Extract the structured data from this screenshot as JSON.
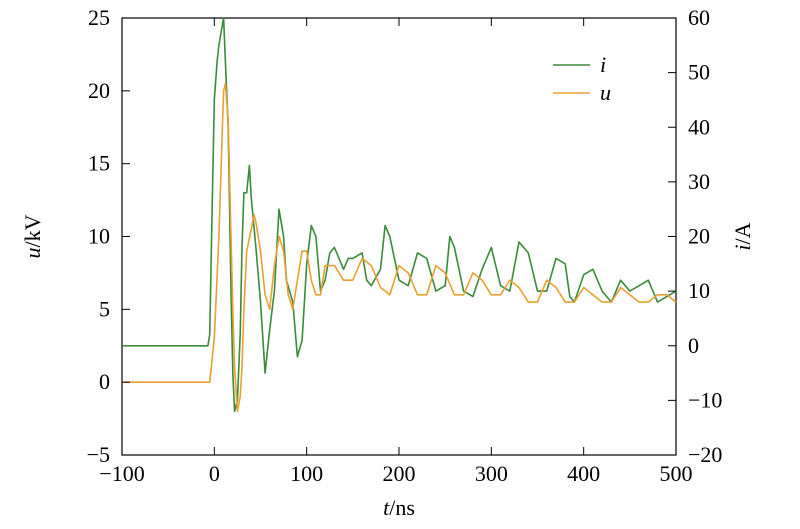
{
  "chart_data": {
    "type": "line",
    "x": {
      "label_var": "t",
      "label_unit": "/ns",
      "ticks": [
        -100,
        0,
        100,
        200,
        300,
        400,
        500
      ],
      "tick_labels": [
        "−100",
        "0",
        "100",
        "200",
        "300",
        "400",
        "500"
      ],
      "range": [
        -100,
        500
      ]
    },
    "y_left": {
      "label_var": "u",
      "label_unit": "/kV",
      "ticks": [
        -5,
        0,
        5,
        10,
        15,
        20,
        25
      ],
      "tick_labels": [
        "−5",
        "0",
        "5",
        "10",
        "15",
        "20",
        "25"
      ],
      "range": [
        -5,
        25
      ]
    },
    "y_right": {
      "label_var": "i",
      "label_unit": "/A",
      "ticks": [
        -20,
        -10,
        0,
        10,
        20,
        30,
        40,
        50,
        60
      ],
      "tick_labels": [
        "−20",
        "−10",
        "0",
        "10",
        "20",
        "30",
        "40",
        "50",
        "60"
      ],
      "range": [
        -20,
        60
      ]
    },
    "legend_position": "top-right",
    "grid": false,
    "series": [
      {
        "name": "i",
        "axis": "right",
        "color": "#3a8a3a",
        "x": [
          -100,
          -80,
          -60,
          -40,
          -20,
          -7,
          -5,
          -3,
          0,
          3,
          5,
          8,
          10,
          12,
          15,
          18,
          20,
          22,
          25,
          28,
          30,
          32,
          35,
          38,
          40,
          45,
          50,
          55,
          60,
          65,
          70,
          75,
          78,
          85,
          90,
          95,
          100,
          105,
          110,
          115,
          120,
          125,
          130,
          140,
          145,
          150,
          160,
          165,
          170,
          180,
          185,
          190,
          200,
          210,
          220,
          230,
          240,
          250,
          255,
          260,
          270,
          280,
          290,
          300,
          310,
          320,
          330,
          340,
          350,
          360,
          370,
          380,
          385,
          390,
          400,
          410,
          420,
          430,
          440,
          450,
          460,
          470,
          480,
          490,
          500
        ],
        "y": [
          0,
          0,
          0,
          0,
          0,
          0,
          2,
          20,
          45,
          52,
          55,
          58,
          60,
          52,
          40,
          10,
          -5,
          -12,
          -10,
          2,
          18,
          28,
          28,
          33,
          27,
          18,
          8,
          -5,
          3,
          10,
          25,
          20,
          12,
          8,
          -2,
          1,
          15,
          22,
          20,
          10,
          12,
          17,
          18,
          14,
          16,
          16,
          17,
          12,
          11,
          14,
          22,
          20,
          12,
          11,
          17,
          16,
          10,
          11,
          20,
          18,
          10,
          9,
          14,
          18,
          11,
          10,
          19,
          17,
          10,
          10,
          16,
          15,
          9,
          8,
          13,
          14,
          10,
          8,
          12,
          10,
          11,
          12,
          8,
          9,
          10
        ]
      },
      {
        "name": "u",
        "axis": "left",
        "color": "#e8a030",
        "x": [
          -100,
          -80,
          -60,
          -40,
          -20,
          -5,
          0,
          5,
          8,
          10,
          12,
          15,
          18,
          20,
          22,
          25,
          28,
          30,
          32,
          35,
          40,
          43,
          45,
          50,
          55,
          60,
          65,
          70,
          75,
          80,
          85,
          90,
          95,
          100,
          105,
          110,
          115,
          120,
          130,
          140,
          150,
          160,
          170,
          180,
          190,
          200,
          210,
          220,
          230,
          240,
          250,
          260,
          270,
          280,
          290,
          300,
          310,
          320,
          330,
          340,
          350,
          360,
          370,
          380,
          390,
          400,
          410,
          420,
          430,
          440,
          450,
          460,
          470,
          480,
          490,
          500
        ],
        "y": [
          0,
          0,
          0,
          0,
          0,
          0,
          3,
          10,
          16,
          20,
          20.5,
          18,
          10,
          5,
          1,
          -2,
          -1,
          1,
          5,
          9,
          10.5,
          11.5,
          11,
          9,
          6,
          5,
          8,
          10,
          9,
          6,
          5,
          7,
          9,
          9,
          7,
          6,
          6,
          8,
          8,
          7,
          7,
          8.5,
          8,
          6.5,
          6,
          8,
          7.5,
          6,
          6,
          8,
          7.5,
          6,
          6,
          7.5,
          7,
          6,
          6,
          7,
          6.5,
          5.5,
          5.5,
          7,
          6.5,
          5.5,
          5.5,
          6.5,
          6,
          5.5,
          5.5,
          6.5,
          6,
          5.5,
          5.5,
          6,
          6,
          5.5
        ]
      }
    ]
  }
}
